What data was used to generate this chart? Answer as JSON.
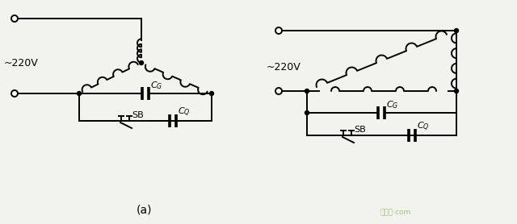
{
  "bg_color": "#f2f2ee",
  "line_color": "black",
  "line_width": 1.4,
  "label_220v": "~220V",
  "label_a": "(a)",
  "fig_width": 6.4,
  "fig_height": 2.78,
  "dpi": 100,
  "watermark": "绿线图.com"
}
